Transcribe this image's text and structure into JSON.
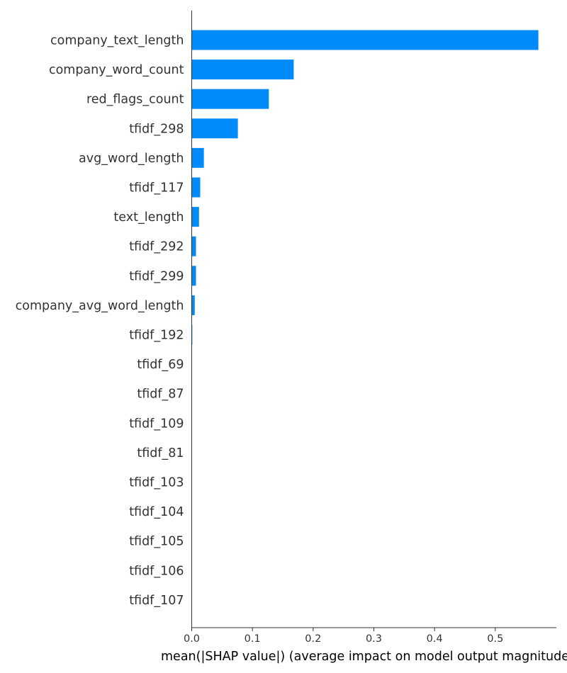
{
  "chart_data": {
    "type": "bar",
    "orientation": "horizontal",
    "categories": [
      "company_text_length",
      "company_word_count",
      "red_flags_count",
      "tfidf_298",
      "avg_word_length",
      "tfidf_117",
      "text_length",
      "tfidf_292",
      "tfidf_299",
      "company_avg_word_length",
      "tfidf_192",
      "tfidf_69",
      "tfidf_87",
      "tfidf_109",
      "tfidf_81",
      "tfidf_103",
      "tfidf_104",
      "tfidf_105",
      "tfidf_106",
      "tfidf_107"
    ],
    "values": [
      0.571,
      0.168,
      0.127,
      0.076,
      0.02,
      0.014,
      0.012,
      0.007,
      0.007,
      0.005,
      0.001,
      0,
      0,
      0,
      0,
      0,
      0,
      0,
      0,
      0
    ],
    "xlabel": "mean(|SHAP value|) (average impact on model output magnitude)",
    "ylabel": "",
    "title": "",
    "xlim": [
      0,
      0.599
    ],
    "xticks": [
      0.0,
      0.1,
      0.2,
      0.3,
      0.4,
      0.5
    ],
    "xtick_labels": [
      "0.0",
      "0.1",
      "0.2",
      "0.3",
      "0.4",
      "0.5"
    ],
    "bar_color": "#008bfb",
    "grid": false,
    "legend": "none"
  }
}
